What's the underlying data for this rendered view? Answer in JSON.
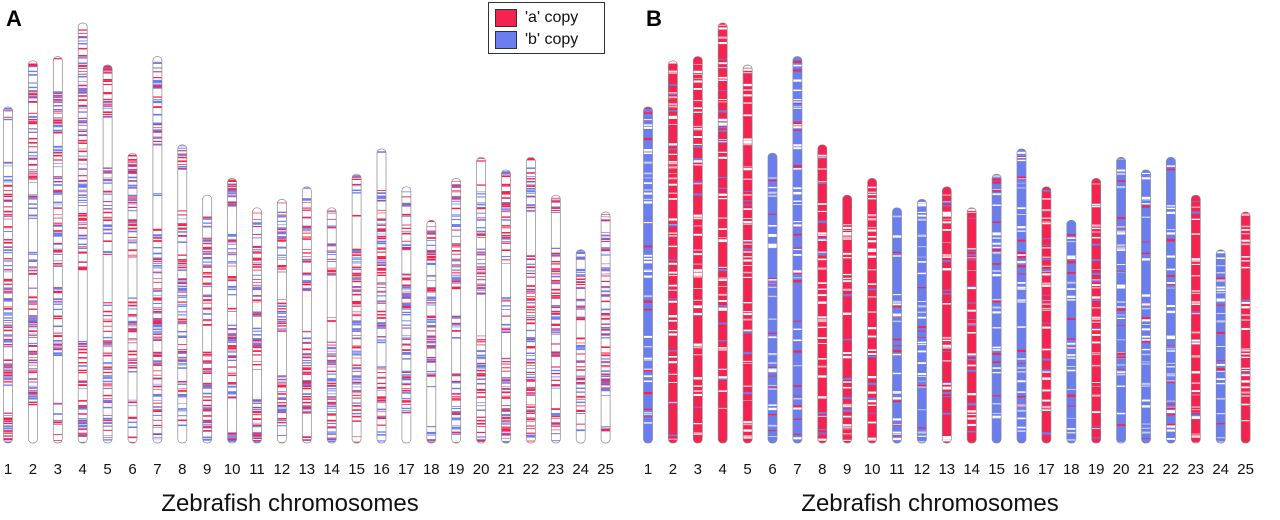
{
  "colors": {
    "a_copy": "#f5234f",
    "b_copy": "#6b7ef0"
  },
  "chart_data": [
    {
      "type": "ideogram",
      "panel_label": "A",
      "xlabel": "Zebrafish chromosomes",
      "categories": [
        "1",
        "2",
        "3",
        "4",
        "5",
        "6",
        "7",
        "8",
        "9",
        "10",
        "11",
        "12",
        "13",
        "14",
        "15",
        "16",
        "17",
        "18",
        "19",
        "20",
        "21",
        "22",
        "23",
        "24",
        "25"
      ],
      "legend": [
        {
          "label": "'a' copy",
          "color": "#f5234f"
        },
        {
          "label": "'b' copy",
          "color": "#6b7ef0"
        }
      ],
      "relative_lengths": [
        0.8,
        0.91,
        0.92,
        1.0,
        0.9,
        0.69,
        0.92,
        0.71,
        0.59,
        0.63,
        0.56,
        0.58,
        0.61,
        0.56,
        0.64,
        0.7,
        0.61,
        0.53,
        0.63,
        0.68,
        0.65,
        0.68,
        0.59,
        0.46,
        0.55
      ],
      "dominant_copy": [
        "mixed",
        "mixed",
        "mixed",
        "mixed",
        "mixed",
        "mixed",
        "mixed",
        "mixed",
        "mixed",
        "mixed",
        "mixed",
        "mixed",
        "mixed",
        "mixed",
        "mixed",
        "mixed",
        "mixed",
        "mixed",
        "mixed",
        "mixed",
        "mixed",
        "mixed",
        "mixed",
        "mixed",
        "mixed"
      ],
      "style": "sparse"
    },
    {
      "type": "ideogram",
      "panel_label": "B",
      "xlabel": "Zebrafish chromosomes",
      "categories": [
        "1",
        "2",
        "3",
        "4",
        "5",
        "6",
        "7",
        "8",
        "9",
        "10",
        "11",
        "12",
        "13",
        "14",
        "15",
        "16",
        "17",
        "18",
        "19",
        "20",
        "21",
        "22",
        "23",
        "24",
        "25"
      ],
      "relative_lengths": [
        0.8,
        0.91,
        0.92,
        1.0,
        0.9,
        0.69,
        0.92,
        0.71,
        0.59,
        0.63,
        0.56,
        0.58,
        0.61,
        0.56,
        0.64,
        0.7,
        0.61,
        0.53,
        0.63,
        0.68,
        0.65,
        0.68,
        0.59,
        0.46,
        0.55
      ],
      "dominant_copy": [
        "b",
        "a",
        "a",
        "a",
        "a",
        "b",
        "b",
        "a",
        "a",
        "a",
        "b",
        "b",
        "a",
        "a",
        "b",
        "b",
        "a",
        "b",
        "a",
        "b",
        "b",
        "b",
        "a",
        "b",
        "a"
      ],
      "style": "filled"
    }
  ]
}
